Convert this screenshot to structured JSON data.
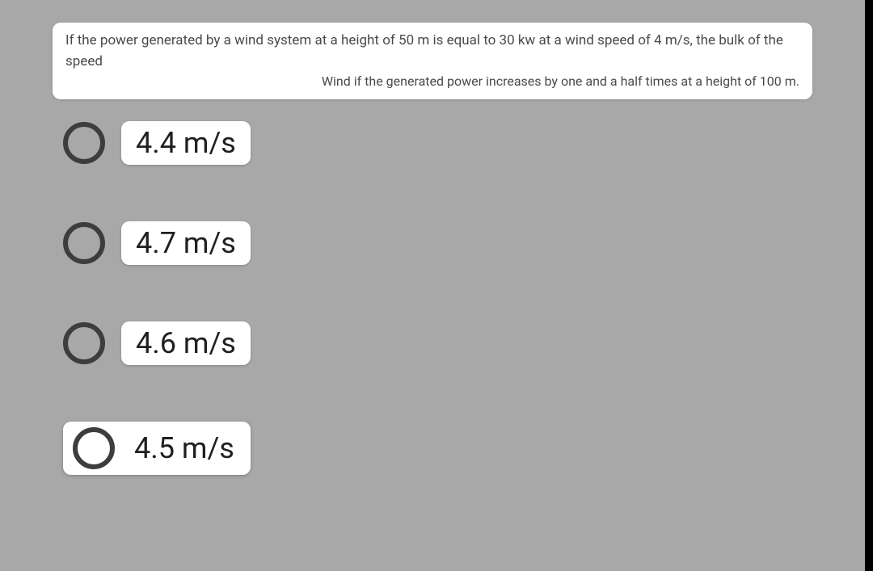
{
  "question": {
    "line1": "If the power generated by a wind system at a height of 50 m is equal to 30 kw at a wind speed of 4 m/s, the bulk of the speed",
    "line2": "Wind if the generated power increases by one and a half times at a height of 100 m."
  },
  "options": [
    {
      "label": "4.4 m/s",
      "highlighted": false
    },
    {
      "label": "4.7 m/s",
      "highlighted": false
    },
    {
      "label": "4.6 m/s",
      "highlighted": false
    },
    {
      "label": "4.5 m/s",
      "highlighted": true
    }
  ],
  "colors": {
    "page_bg": "#a8a8a8",
    "card_bg": "#ffffff",
    "text_primary": "#202020",
    "text_muted": "#4a4a4a",
    "radio_ring": "#3d3d3d",
    "right_bar": "#000000"
  }
}
